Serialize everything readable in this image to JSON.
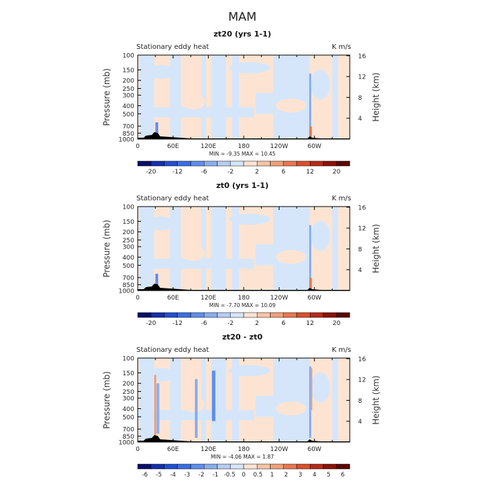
{
  "figure_title": "MAM",
  "chart_data": [
    {
      "type": "heatmap",
      "title": "zt20 (yrs 1-1)",
      "left_label": "Stationary eddy heat",
      "right_label": "K m/s",
      "ylabel": "Pressure (mb)",
      "ylabel_right": "Height (km)",
      "x_ticks": [
        "0",
        "60E",
        "120E",
        "180",
        "120W",
        "60W"
      ],
      "y_ticks": [
        "100",
        "150",
        "200",
        "250",
        "300",
        "400",
        "500",
        "700",
        "850",
        "1000"
      ],
      "height_ticks": [
        "16",
        "12",
        "8",
        "4"
      ],
      "stats": {
        "min": "-9.35",
        "max": "10.45",
        "text": "MIN = -9.35  MAX = 10.45"
      },
      "colorbar_labels": [
        "-20",
        "-12",
        "-6",
        "-2",
        "2",
        "6",
        "12",
        "20"
      ],
      "colorbar_levels": [
        -20,
        -16,
        -12,
        -8,
        -6,
        -4,
        -2,
        -1,
        1,
        2,
        4,
        6,
        8,
        12,
        16,
        20
      ],
      "background_value": "weak positive (light orange) with weak negative (light blue) regions"
    },
    {
      "type": "heatmap",
      "title": "zt0 (yrs 1-1)",
      "left_label": "Stationary eddy heat",
      "right_label": "K m/s",
      "ylabel": "Pressure (mb)",
      "ylabel_right": "Height (km)",
      "x_ticks": [
        "0",
        "60E",
        "120E",
        "180",
        "120W",
        "60W"
      ],
      "y_ticks": [
        "100",
        "150",
        "200",
        "250",
        "300",
        "400",
        "500",
        "700",
        "850",
        "1000"
      ],
      "height_ticks": [
        "16",
        "12",
        "8",
        "4"
      ],
      "stats": {
        "min": "-7.70",
        "max": "10.09",
        "text": "MIN = -7.70  MAX = 10.09"
      },
      "colorbar_labels": [
        "-20",
        "-12",
        "-6",
        "-2",
        "2",
        "6",
        "12",
        "20"
      ],
      "colorbar_levels": [
        -20,
        -16,
        -12,
        -8,
        -6,
        -4,
        -2,
        -1,
        1,
        2,
        4,
        6,
        8,
        12,
        16,
        20
      ]
    },
    {
      "type": "heatmap",
      "title": "zt20 - zt0",
      "left_label": "Stationary eddy heat",
      "right_label": "K m/s",
      "ylabel": "Pressure (mb)",
      "ylabel_right": "Height (km)",
      "x_ticks": [
        "0",
        "60E",
        "120E",
        "180",
        "120W",
        "60W"
      ],
      "y_ticks": [
        "100",
        "150",
        "200",
        "250",
        "300",
        "400",
        "500",
        "700",
        "850",
        "1000"
      ],
      "height_ticks": [
        "16",
        "12",
        "8",
        "4"
      ],
      "stats": {
        "min": "-4.06",
        "max": "1.87",
        "text": "MIN = -4.06  MAX = 1.87"
      },
      "colorbar_labels": [
        "-6",
        "-5",
        "-4",
        "-3",
        "-2",
        "-1",
        "-0.5",
        "0",
        "0.5",
        "1",
        "2",
        "3",
        "4",
        "5",
        "6"
      ],
      "colorbar_levels": [
        -6,
        -5,
        -4,
        -3,
        -2,
        -1,
        -0.5,
        0,
        0.5,
        1,
        2,
        3,
        4,
        5,
        6
      ]
    }
  ],
  "palette": {
    "colors": [
      "#08106a",
      "#1630a8",
      "#2150d0",
      "#3a6fe0",
      "#5f8ee8",
      "#89aef0",
      "#b5cdf6",
      "#d6e6fb",
      "#fde3d3",
      "#f8c4a4",
      "#f0a078",
      "#e8774f",
      "#d9502c",
      "#b52c17",
      "#8a1308",
      "#5c0703"
    ],
    "field_blue": "#d5e6fa",
    "field_orange": "#fde4d2",
    "terrain": "#000000"
  }
}
